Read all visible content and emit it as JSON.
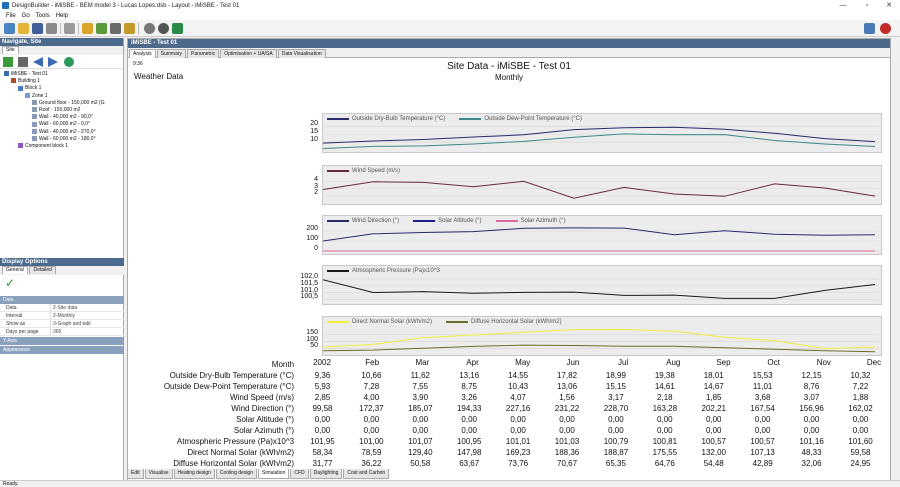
{
  "window": {
    "title": "DesignBuilder - iMiSBE - BEM model 3 - Lucas Lopes.dsb - Layout - iMiSBE - Test 01",
    "controls": [
      "—",
      "▫",
      "✕"
    ]
  },
  "menu": [
    "File",
    "Go",
    "Tools",
    "Help"
  ],
  "left": {
    "nav_title": "Navigate, Site",
    "nav_tab": "Site",
    "tree": [
      {
        "label": "iMiSBE - Test 01",
        "indent": 0,
        "icon": "site-icon"
      },
      {
        "label": "Building 1",
        "indent": 1,
        "icon": "building-icon"
      },
      {
        "label": "Block 1",
        "indent": 2,
        "icon": "block-icon"
      },
      {
        "label": "Zone 1",
        "indent": 3,
        "icon": "zone-icon"
      },
      {
        "label": "Ground floor - 150,000 m2 (G",
        "indent": 4,
        "icon": "surface-icon"
      },
      {
        "label": "Roof - 150,000 m2",
        "indent": 4,
        "icon": "surface-icon"
      },
      {
        "label": "Wall - 40,000 m2 - 90,0°",
        "indent": 4,
        "icon": "surface-icon"
      },
      {
        "label": "Wall - 60,000 m2 - 0,0°",
        "indent": 4,
        "icon": "surface-icon"
      },
      {
        "label": "Wall - 40,000 m2 - 270,0°",
        "indent": 4,
        "icon": "surface-icon"
      },
      {
        "label": "Wall - 60,000 m2 - 180,0°",
        "indent": 4,
        "icon": "surface-icon"
      },
      {
        "label": "Component block 1",
        "indent": 2,
        "icon": "component-icon"
      }
    ],
    "display_title": "Display Options",
    "display_tabs": [
      "General",
      "Detailed"
    ],
    "data_section": "Data",
    "props": [
      {
        "k": "Data",
        "v": "2-Site data"
      },
      {
        "k": "Interval",
        "v": "2-Monthly"
      },
      {
        "k": "Show as",
        "v": "3-Graph and tabl"
      },
      {
        "k": "Days per page",
        "v": "365"
      }
    ],
    "yaxis_section": "Y-Axis",
    "appearance_section": "Appearance"
  },
  "main": {
    "header": "iMiSBE - Test 01",
    "tabs": [
      "Analysis",
      "Summary",
      "Parametric",
      "Optimisation + UA/SA",
      "Data Visualisation"
    ],
    "active_tab": "Analysis",
    "timestamp": "9:36",
    "subheading": "Weather Data",
    "bottom_tabs": [
      "Edit",
      "Visualise",
      "Heating design",
      "Cooling design",
      "Simulation",
      "CFD",
      "Daylighting",
      "Cost and Carbon"
    ],
    "active_bottom_tab": "Simulation"
  },
  "status": "Ready.",
  "chart_data": {
    "title": "Site Data - iMiSBE - Test 01",
    "subtitle": "Monthly",
    "type": "line",
    "categories": [
      "2002",
      "Feb",
      "Mar",
      "Apr",
      "May",
      "Jun",
      "Jul",
      "Aug",
      "Sep",
      "Oct",
      "Nov",
      "Dec"
    ],
    "xlabel": "Month",
    "panels": [
      {
        "ylim": [
          5,
          22
        ],
        "yticks": [
          "20",
          "15",
          "10"
        ],
        "ytickvals": [
          20,
          15,
          10
        ],
        "series": [
          {
            "name": "Outside Dry-Bulb Temperature (°C)",
            "color": "#2b2b6e",
            "values": [
              9.36,
              10.66,
              11.62,
              13.16,
              14.55,
              17.82,
              18.99,
              19.38,
              18.01,
              15.53,
              12.15,
              10.32
            ]
          },
          {
            "name": "Outside Dew-Point Temperature (°C)",
            "color": "#3d8a8a",
            "values": [
              5.93,
              7.28,
              7.55,
              8.75,
              10.43,
              13.06,
              15.15,
              14.61,
              14.67,
              11.01,
              8.76,
              7.22
            ]
          }
        ]
      },
      {
        "ylim": [
          1,
          5
        ],
        "yticks": [
          "4",
          "3",
          "2"
        ],
        "ytickvals": [
          4,
          3,
          2
        ],
        "series": [
          {
            "name": "Wind Speed (m/s)",
            "color": "#6b2a3a",
            "values": [
              2.85,
              4.0,
              3.9,
              3.26,
              4.07,
              1.56,
              3.17,
              2.18,
              1.85,
              3.68,
              3.07,
              1.88
            ]
          }
        ]
      },
      {
        "ylim": [
          -10,
          260
        ],
        "yticks": [
          "200",
          "100",
          "0"
        ],
        "ytickvals": [
          200,
          100,
          0
        ],
        "series": [
          {
            "name": "Wind Direction (°)",
            "color": "#2b2b6e",
            "values": [
              99.58,
              172.37,
              185.07,
              194.33,
              227.16,
              231.22,
              228.7,
              163.28,
              202.21,
              167.54,
              156.96,
              162.02
            ]
          },
          {
            "name": "Solar Altitude (°)",
            "color": "#1f1f8f",
            "values": [
              0,
              0,
              0,
              0,
              0,
              0,
              0,
              0,
              0,
              0,
              0,
              0
            ]
          },
          {
            "name": "Solar Azimuth (°)",
            "color": "#e06aa0",
            "values": [
              0,
              0,
              0,
              0,
              0,
              0,
              0,
              0,
              0,
              0,
              0,
              0
            ]
          }
        ]
      },
      {
        "ylim": [
          100.3,
          102.3
        ],
        "yticks": [
          "102,0",
          "101,5",
          "101,0",
          "100,5"
        ],
        "ytickvals": [
          102.0,
          101.5,
          101.0,
          100.5
        ],
        "series": [
          {
            "name": "Atmospheric Pressure (Pa)x10^3",
            "color": "#1a1a1a",
            "values": [
              101.95,
              101.0,
              101.07,
              100.95,
              101.01,
              101.03,
              100.79,
              100.81,
              100.57,
              100.57,
              101.16,
              101.6
            ]
          }
        ]
      },
      {
        "ylim": [
          15,
          215
        ],
        "yticks": [
          "150",
          "100",
          "50"
        ],
        "ytickvals": [
          150,
          100,
          50
        ],
        "series": [
          {
            "name": "Direct Normal Solar (kWh/m2)",
            "color": "#f2ef3a",
            "values": [
              58.34,
              78.59,
              129.4,
              147.98,
              169.23,
              188.36,
              188.87,
              175.55,
              132.0,
              107.13,
              48.33,
              59.58
            ]
          },
          {
            "name": "Diffuse Horizontal Solar (kWh/m2)",
            "color": "#6e6e2a",
            "values": [
              31.77,
              36.22,
              50.58,
              63.67,
              73.76,
              70.67,
              65.35,
              64.76,
              54.48,
              42.89,
              32.06,
              24.95
            ]
          }
        ]
      }
    ],
    "table": {
      "header": "Month",
      "rows": [
        {
          "label": "Outside Dry-Bulb Temperature (°C)",
          "values": [
            "9,36",
            "10,66",
            "11,62",
            "13,16",
            "14,55",
            "17,82",
            "18,99",
            "19,38",
            "18,01",
            "15,53",
            "12,15",
            "10,32"
          ]
        },
        {
          "label": "Outside Dew-Point Temperature (°C)",
          "values": [
            "5,93",
            "7,28",
            "7,55",
            "8,75",
            "10,43",
            "13,06",
            "15,15",
            "14,61",
            "14,67",
            "11,01",
            "8,76",
            "7,22"
          ]
        },
        {
          "label": "Wind Speed (m/s)",
          "values": [
            "2,85",
            "4,00",
            "3,90",
            "3,26",
            "4,07",
            "1,56",
            "3,17",
            "2,18",
            "1,85",
            "3,68",
            "3,07",
            "1,88"
          ]
        },
        {
          "label": "Wind Direction (°)",
          "values": [
            "99,58",
            "172,37",
            "185,07",
            "194,33",
            "227,16",
            "231,22",
            "228,70",
            "163,28",
            "202,21",
            "167,54",
            "156,96",
            "162,02"
          ]
        },
        {
          "label": "Solar Altitude (°)",
          "values": [
            "0,00",
            "0,00",
            "0,00",
            "0,00",
            "0,00",
            "0,00",
            "0,00",
            "0,00",
            "0,00",
            "0,00",
            "0,00",
            "0,00"
          ]
        },
        {
          "label": "Solar Azimuth (°)",
          "values": [
            "0,00",
            "0,00",
            "0,00",
            "0,00",
            "0,00",
            "0,00",
            "0,00",
            "0,00",
            "0,00",
            "0,00",
            "0,00",
            "0,00"
          ]
        },
        {
          "label": "Atmospheric Pressure (Pa)x10^3",
          "values": [
            "101,95",
            "101,00",
            "101,07",
            "100,95",
            "101,01",
            "101,03",
            "100,79",
            "100,81",
            "100,57",
            "100,57",
            "101,16",
            "101,60"
          ]
        },
        {
          "label": "Direct Normal Solar (kWh/m2)",
          "values": [
            "58,34",
            "78,59",
            "129,40",
            "147,98",
            "169,23",
            "188,36",
            "188,87",
            "175,55",
            "132,00",
            "107,13",
            "48,33",
            "59,58"
          ]
        },
        {
          "label": "Diffuse Horizontal Solar (kWh/m2)",
          "values": [
            "31,77",
            "36,22",
            "50,58",
            "63,67",
            "73,76",
            "70,67",
            "65,35",
            "64,76",
            "54,48",
            "42,89",
            "32,06",
            "24,95"
          ]
        }
      ]
    }
  }
}
